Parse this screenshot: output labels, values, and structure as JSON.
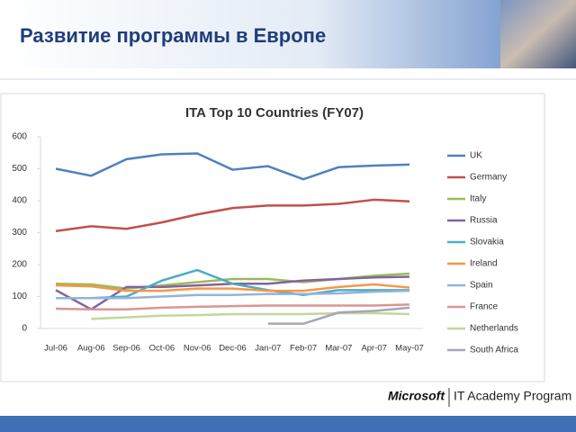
{
  "header": {
    "title": "Развитие программы в Европе"
  },
  "chart_data": {
    "type": "line",
    "title": "ITA Top 10 Countries (FY07)",
    "categories": [
      "Jul-06",
      "Aug-06",
      "Sep-06",
      "Oct-06",
      "Nov-06",
      "Dec-06",
      "Jan-07",
      "Feb-07",
      "Mar-07",
      "Apr-07",
      "May-07"
    ],
    "ylim": [
      0,
      600
    ],
    "yticks": [
      0,
      100,
      200,
      300,
      400,
      500,
      600
    ],
    "grid": false,
    "legend": "right",
    "series": [
      {
        "name": "UK",
        "color": "#4f81bd",
        "values": [
          500,
          478,
          530,
          545,
          548,
          497,
          508,
          467,
          505,
          510,
          513
        ]
      },
      {
        "name": "Germany",
        "color": "#c0504d",
        "values": [
          305,
          320,
          312,
          332,
          357,
          377,
          385,
          385,
          390,
          403,
          398
        ]
      },
      {
        "name": "Italy",
        "color": "#9bbb59",
        "values": [
          140,
          138,
          125,
          135,
          145,
          155,
          155,
          145,
          155,
          165,
          172
        ]
      },
      {
        "name": "Russia",
        "color": "#8064a2",
        "values": [
          120,
          60,
          130,
          130,
          135,
          140,
          140,
          150,
          155,
          160,
          162
        ]
      },
      {
        "name": "Slovakia",
        "color": "#4bacc6",
        "values": [
          95,
          95,
          100,
          150,
          183,
          140,
          120,
          105,
          120,
          120,
          120
        ]
      },
      {
        "name": "Ireland",
        "color": "#f79646",
        "values": [
          135,
          132,
          118,
          118,
          125,
          125,
          118,
          118,
          130,
          138,
          128
        ]
      },
      {
        "name": "Spain",
        "color": "#95b3d7",
        "values": [
          95,
          95,
          95,
          100,
          105,
          105,
          108,
          108,
          110,
          115,
          118
        ]
      },
      {
        "name": "France",
        "color": "#d99694",
        "values": [
          62,
          60,
          60,
          65,
          68,
          70,
          72,
          72,
          72,
          72,
          75
        ]
      },
      {
        "name": "Netherlands",
        "color": "#c3d69b",
        "values": [
          null,
          30,
          35,
          40,
          42,
          45,
          45,
          45,
          48,
          48,
          45
        ]
      },
      {
        "name": "South Africa",
        "color": "#a6a6b8",
        "values": [
          null,
          null,
          null,
          null,
          null,
          null,
          15,
          15,
          50,
          55,
          65
        ]
      }
    ]
  },
  "footer": {
    "brand": "Microsoft",
    "program": "IT Academy Program"
  }
}
